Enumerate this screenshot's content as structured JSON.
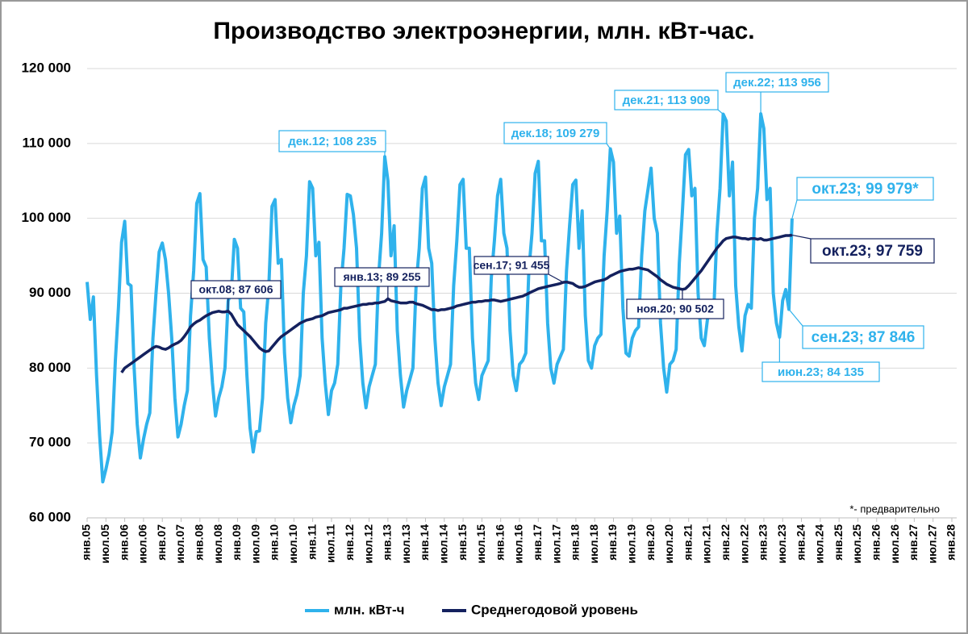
{
  "chart_data": {
    "type": "line",
    "title": "Производство электроэнергии, млн. кВт-час.",
    "footnote": "*- предварительно",
    "x_labels": [
      "янв.05",
      "июл.05",
      "янв.06",
      "июл.06",
      "янв.07",
      "июл.07",
      "янв.08",
      "июл.08",
      "янв.09",
      "июл.09",
      "янв.10",
      "июл.10",
      "янв.11",
      "июл.11",
      "янв.12",
      "июл.12",
      "янв.13",
      "июл.13",
      "янв.14",
      "июл.14",
      "янв.15",
      "июл.15",
      "янв.16",
      "июл.16",
      "янв.17",
      "июл.17",
      "янв.18",
      "июл.18",
      "янв.19",
      "июл.19",
      "янв.20",
      "июл.20",
      "янв.21",
      "июл.21",
      "янв.22",
      "июл.22",
      "янв.23",
      "июл.23",
      "янв.24",
      "июл.24",
      "янв.25",
      "июл.25",
      "янв.26",
      "июл.26",
      "янв.27",
      "июл.27",
      "янв.28"
    ],
    "ylim": [
      60000,
      120000
    ],
    "yticks": [
      {
        "value": 60000,
        "label": "60 000"
      },
      {
        "value": 70000,
        "label": "70 000"
      },
      {
        "value": 80000,
        "label": "80 000"
      },
      {
        "value": 90000,
        "label": "90 000"
      },
      {
        "value": 100000,
        "label": "100 000"
      },
      {
        "value": 110000,
        "label": "110 000"
      },
      {
        "value": 120000,
        "label": "120 000"
      }
    ],
    "grid": true,
    "legend": "bottom",
    "series": [
      {
        "name": "млн. кВт-ч",
        "color": "#2fb2ec",
        "values": [
          91500,
          86500,
          89500,
          79000,
          71000,
          64800,
          66500,
          68500,
          71500,
          81000,
          88000,
          96800,
          99600,
          91300,
          91000,
          80000,
          72500,
          68000,
          70500,
          72500,
          74000,
          84000,
          90000,
          95500,
          96700,
          94500,
          90000,
          84000,
          76000,
          70800,
          72500,
          75000,
          77000,
          87000,
          93000,
          102000,
          103300,
          94500,
          93500,
          84000,
          78000,
          73600,
          76000,
          77500,
          80000,
          89000,
          90000,
          97200,
          96000,
          88000,
          87500,
          79000,
          72000,
          68800,
          71500,
          71600,
          76000,
          86000,
          91000,
          101600,
          102500,
          94000,
          94500,
          82000,
          76000,
          72700,
          75000,
          76500,
          79000,
          90000,
          95000,
          104900,
          104000,
          95000,
          96800,
          84000,
          78000,
          73800,
          77000,
          78000,
          80500,
          91000,
          96000,
          103200,
          103000,
          100500,
          96000,
          84000,
          78000,
          74700,
          77500,
          79000,
          80500,
          92000,
          98000,
          108235,
          105000,
          95000,
          99000,
          85000,
          79000,
          74800,
          77000,
          78500,
          80000,
          91000,
          96000,
          104000,
          105500,
          96000,
          94000,
          84000,
          78000,
          75000,
          77500,
          79000,
          80500,
          91000,
          97000,
          104500,
          105200,
          96000,
          96000,
          84000,
          78000,
          75800,
          79000,
          80000,
          81000,
          92000,
          97000,
          103000,
          105200,
          98000,
          96000,
          85000,
          79000,
          77000,
          80500,
          81000,
          82000,
          93000,
          98000,
          106000,
          107600,
          97000,
          97000,
          86000,
          80000,
          78000,
          80500,
          81500,
          82500,
          93000,
          99000,
          104500,
          105100,
          96000,
          101000,
          87000,
          81000,
          80000,
          83000,
          84000,
          84500,
          95000,
          101000,
          109279,
          107500,
          98000,
          100300,
          88000,
          82000,
          81600,
          84000,
          85000,
          85500,
          95000,
          101000,
          103800,
          106700,
          100000,
          98000,
          86000,
          80000,
          76800,
          80500,
          81000,
          82500,
          94000,
          101000,
          108500,
          109200,
          103000,
          104000,
          90000,
          84000,
          83000,
          86500,
          88000,
          87500,
          98000,
          104000,
          113909,
          113000,
          103000,
          107500,
          91000,
          85500,
          82300,
          87000,
          88500,
          88000,
          100000,
          104000,
          113956,
          112000,
          102500,
          104000,
          90000,
          86000,
          84135,
          89000,
          90500,
          87846,
          99979
        ]
      },
      {
        "name": "Среднегодовой уровень",
        "color": "#14215e",
        "values": [
          null,
          null,
          null,
          null,
          null,
          null,
          null,
          null,
          null,
          null,
          null,
          79400,
          80000,
          80300,
          80600,
          80900,
          81200,
          81500,
          81800,
          82100,
          82400,
          82700,
          82900,
          82800,
          82600,
          82500,
          82700,
          83000,
          83200,
          83400,
          83700,
          84200,
          84800,
          85500,
          85900,
          86200,
          86400,
          86700,
          87000,
          87200,
          87400,
          87500,
          87600,
          87500,
          87500,
          87606,
          87200,
          86500,
          85800,
          85400,
          85000,
          84600,
          84200,
          83700,
          83200,
          82700,
          82400,
          82200,
          82300,
          82800,
          83300,
          83800,
          84200,
          84500,
          84800,
          85100,
          85400,
          85700,
          86000,
          86200,
          86400,
          86500,
          86600,
          86800,
          86900,
          87000,
          87200,
          87400,
          87500,
          87600,
          87700,
          87800,
          88000,
          88000,
          88100,
          88200,
          88300,
          88400,
          88500,
          88500,
          88600,
          88600,
          88700,
          88700,
          88800,
          88900,
          89255,
          89000,
          88900,
          88800,
          88700,
          88700,
          88700,
          88800,
          88800,
          88600,
          88500,
          88400,
          88200,
          88000,
          87800,
          87800,
          87700,
          87800,
          87800,
          87900,
          88000,
          88100,
          88300,
          88400,
          88500,
          88600,
          88700,
          88800,
          88800,
          88900,
          88900,
          89000,
          89000,
          89100,
          89100,
          89000,
          88900,
          89000,
          89100,
          89200,
          89300,
          89400,
          89500,
          89600,
          89800,
          90000,
          90200,
          90400,
          90600,
          90700,
          90800,
          90900,
          91000,
          91100,
          91200,
          91300,
          91455,
          91500,
          91400,
          91300,
          91000,
          90800,
          90800,
          90900,
          91100,
          91300,
          91500,
          91600,
          91700,
          91800,
          92000,
          92300,
          92500,
          92700,
          92900,
          93000,
          93100,
          93200,
          93200,
          93300,
          93400,
          93300,
          93200,
          93100,
          92800,
          92500,
          92200,
          91800,
          91500,
          91200,
          91000,
          90800,
          90700,
          90600,
          90502,
          90600,
          91000,
          91500,
          92000,
          92500,
          93000,
          93600,
          94200,
          94800,
          95400,
          96000,
          96500,
          97000,
          97300,
          97400,
          97500,
          97500,
          97400,
          97300,
          97300,
          97200,
          97300,
          97300,
          97200,
          97300,
          97100,
          97100,
          97200,
          97300,
          97400,
          97500,
          97600,
          97700,
          97700,
          97759
        ]
      }
    ],
    "annotations": [
      "окт.08;  87 606",
      "янв.13;  89 255",
      "сен.17;  91 455",
      "ноя.20;  90 502",
      "окт.23;  97 759",
      "дек.12; 108 235",
      "дек.18; 109 279",
      "дек.21; 113 909",
      "дек.22; 113 956",
      "окт.23; 99 979*",
      "сен.23; 87 846",
      "июн.23; 84 135"
    ]
  }
}
